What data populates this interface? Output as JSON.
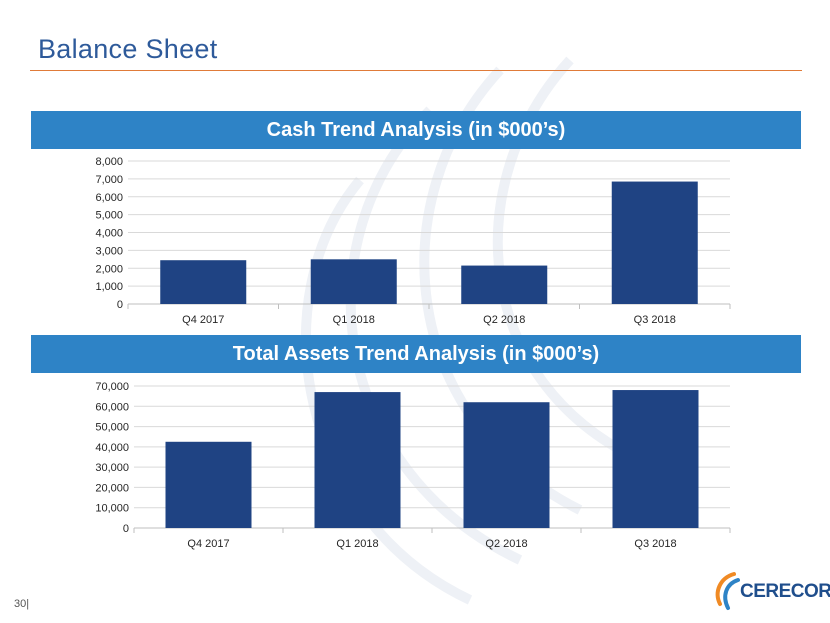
{
  "slide": {
    "title": "Balance Sheet",
    "page_number": "30|",
    "logo_text": "CERECOR",
    "colors": {
      "title": "#2e5a9a",
      "rule": "#e07b39",
      "banner": "#2e83c6",
      "bar": "#1f4383"
    }
  },
  "chart_data": [
    {
      "type": "bar",
      "title": "Cash Trend Analysis (in $000’s)",
      "categories": [
        "Q4 2017",
        "Q1 2018",
        "Q2 2018",
        "Q3 2018"
      ],
      "values": [
        2450,
        2500,
        2150,
        6850
      ],
      "ylim": [
        0,
        8000
      ],
      "yticks": [
        0,
        1000,
        2000,
        3000,
        4000,
        5000,
        6000,
        7000,
        8000
      ],
      "grid": true
    },
    {
      "type": "bar",
      "title": "Total Assets Trend Analysis (in $000’s)",
      "categories": [
        "Q4 2017",
        "Q1 2018",
        "Q2 2018",
        "Q3 2018"
      ],
      "values": [
        42500,
        67000,
        62000,
        68000
      ],
      "ylim": [
        0,
        70000
      ],
      "yticks": [
        0,
        10000,
        20000,
        30000,
        40000,
        50000,
        60000,
        70000
      ],
      "grid": true
    }
  ]
}
